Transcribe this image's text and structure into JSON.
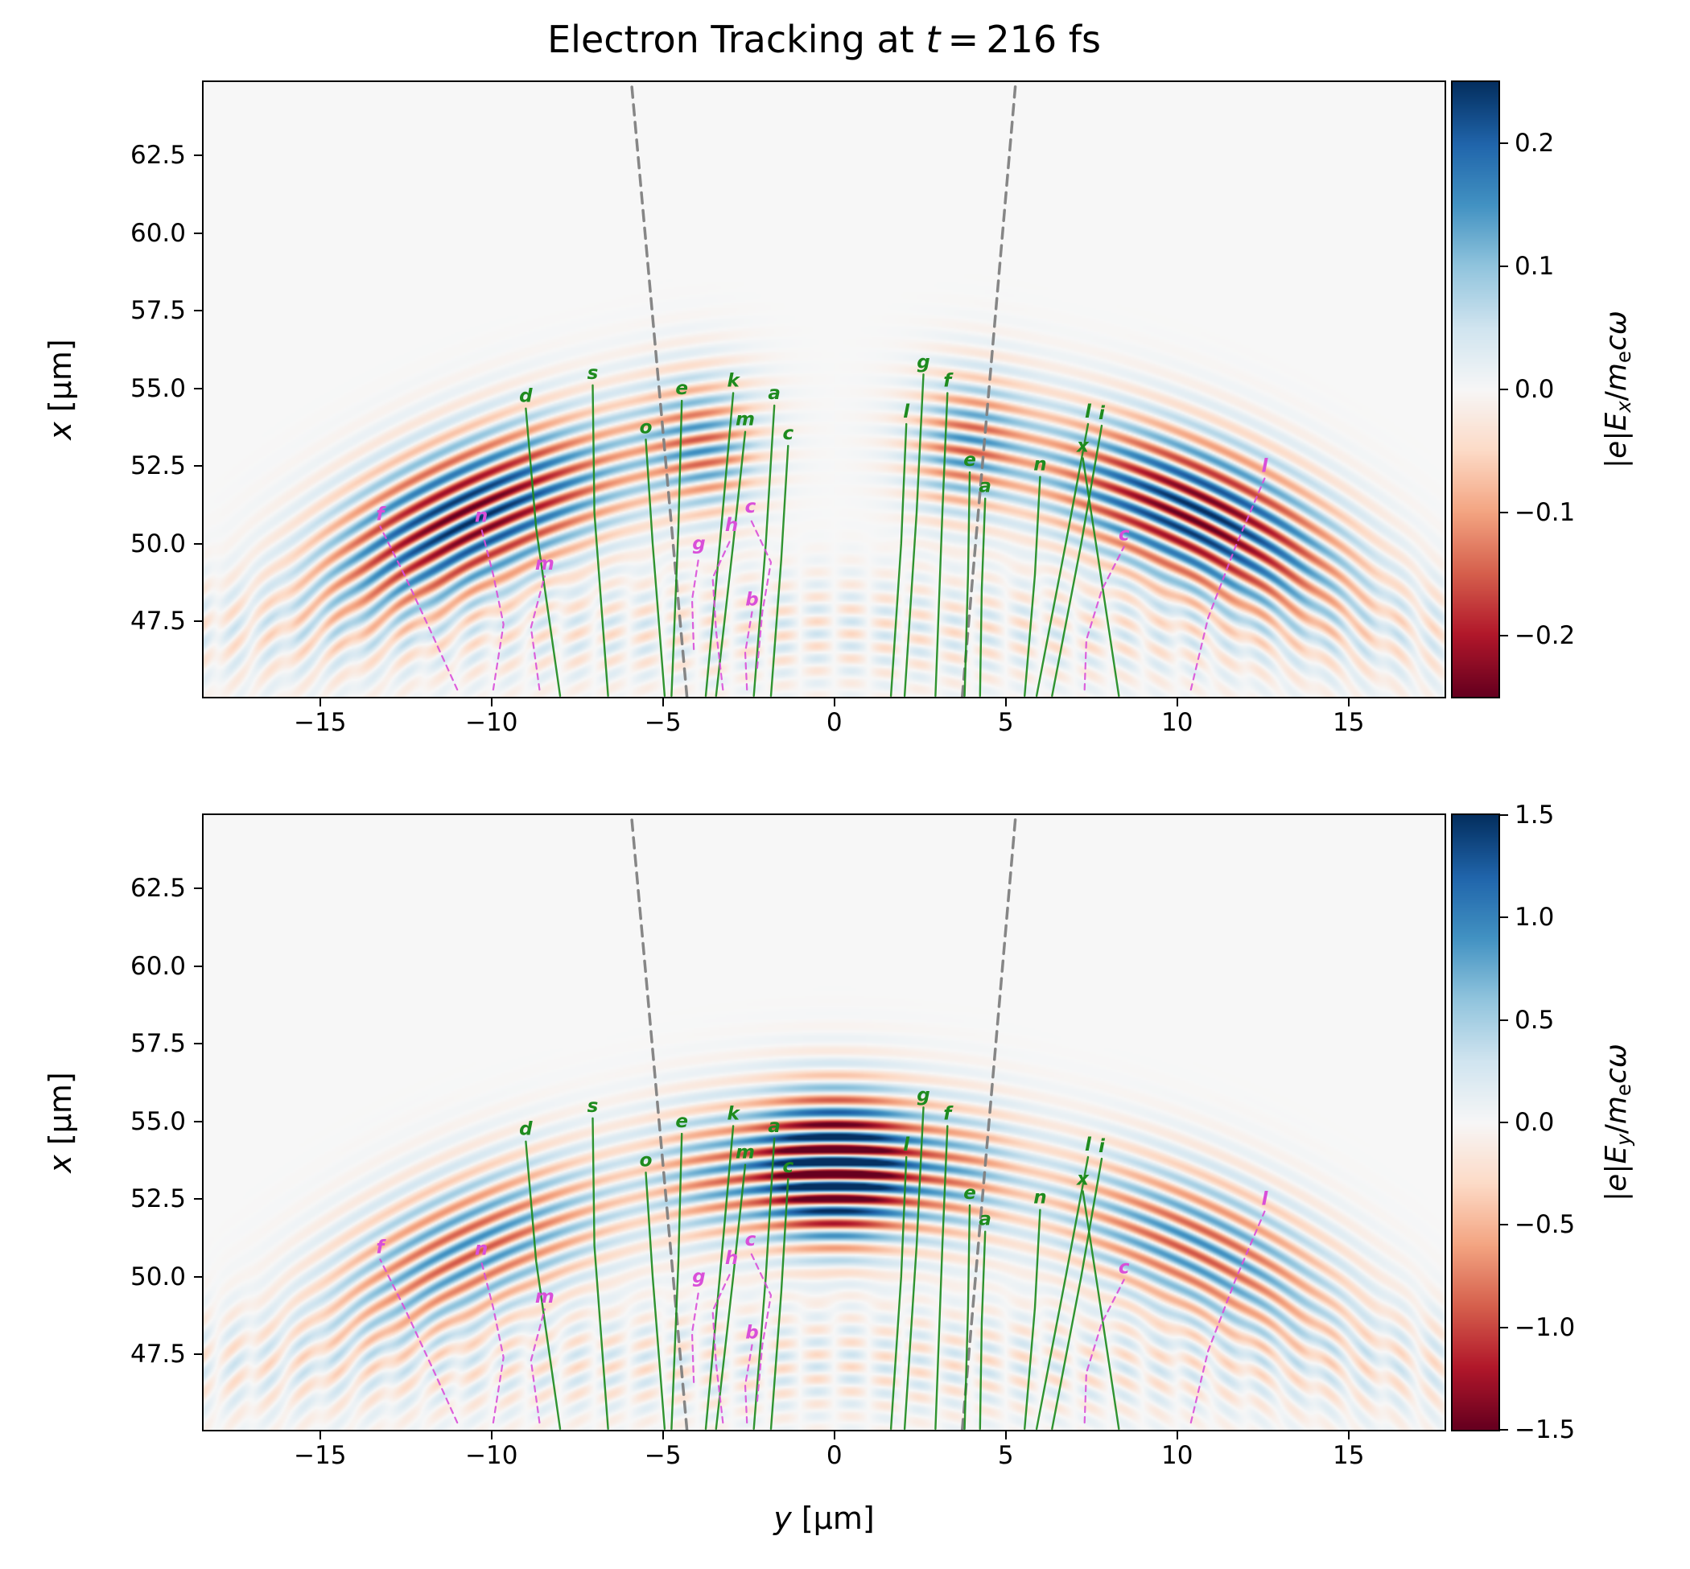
{
  "title": {
    "prefix": "Electron Tracking at ",
    "var": "t",
    "suffix": " = 216 fs"
  },
  "axes": {
    "ylabel": {
      "var": "x",
      "unit": " [μm]"
    },
    "xlabel": {
      "var": "y",
      "unit": " [μm]"
    },
    "x_ticks": [
      {
        "v": -15,
        "t": "−15"
      },
      {
        "v": -10,
        "t": "−10"
      },
      {
        "v": -5,
        "t": "−5"
      },
      {
        "v": 0,
        "t": "0"
      },
      {
        "v": 5,
        "t": "5"
      },
      {
        "v": 10,
        "t": "10"
      },
      {
        "v": 15,
        "t": "15"
      }
    ],
    "y_ticks": [
      {
        "v": 62.5,
        "t": "62.5"
      },
      {
        "v": 60.0,
        "t": "60.0"
      },
      {
        "v": 57.5,
        "t": "57.5"
      },
      {
        "v": 55.0,
        "t": "55.0"
      },
      {
        "v": 52.5,
        "t": "52.5"
      },
      {
        "v": 50.0,
        "t": "50.0"
      },
      {
        "v": 47.5,
        "t": "47.5"
      }
    ]
  },
  "colorbars": [
    {
      "ticks": [
        {
          "v": 0.2,
          "t": "0.2"
        },
        {
          "v": 0.1,
          "t": "0.1"
        },
        {
          "v": 0.0,
          "t": "0.0"
        },
        {
          "v": -0.1,
          "t": "−0.1"
        },
        {
          "v": -0.2,
          "t": "−0.2"
        }
      ],
      "label_parts": [
        {
          "t": "|"
        },
        {
          "t": "e",
          "i": 1
        },
        {
          "t": "|"
        },
        {
          "t": "E",
          "i": 1
        },
        {
          "t": "x",
          "i": 1,
          "s": 1
        },
        {
          "t": "/"
        },
        {
          "t": "m",
          "i": 1
        },
        {
          "t": "e",
          "s": 1
        },
        {
          "t": "c",
          "i": 1
        },
        {
          "t": "ω",
          "i": 1
        }
      ]
    },
    {
      "ticks": [
        {
          "v": 1.5,
          "t": "1.5"
        },
        {
          "v": 1.0,
          "t": "1.0"
        },
        {
          "v": 0.5,
          "t": "0.5"
        },
        {
          "v": 0.0,
          "t": "0.0"
        },
        {
          "v": -0.5,
          "t": "−0.5"
        },
        {
          "v": -1.0,
          "t": "−1.0"
        },
        {
          "v": -1.5,
          "t": "−1.5"
        }
      ],
      "label_parts": [
        {
          "t": "|"
        },
        {
          "t": "e",
          "i": 1
        },
        {
          "t": "|"
        },
        {
          "t": "E",
          "i": 1
        },
        {
          "t": "y",
          "i": 1,
          "s": 1
        },
        {
          "t": "/"
        },
        {
          "t": "m",
          "i": 1
        },
        {
          "t": "e",
          "s": 1
        },
        {
          "t": "c",
          "i": 1
        },
        {
          "t": "ω",
          "i": 1
        }
      ]
    }
  ],
  "chart_data": {
    "type": "heatmap",
    "title": "Electron Tracking at t = 216 fs",
    "time_fs": 216,
    "colormap": "RdBu",
    "x_axis": {
      "label": "y [μm]",
      "range": [
        -18.4,
        17.8
      ],
      "ticks": [
        -15,
        -10,
        -5,
        0,
        5,
        10,
        15
      ]
    },
    "y_axis": {
      "label": "x [μm]",
      "range": [
        45.07,
        64.86
      ],
      "ticks": [
        47.5,
        50.0,
        52.5,
        55.0,
        57.5,
        60.0,
        62.5
      ]
    },
    "panels": [
      {
        "field_label": "|e|E_x/m_e cω",
        "colorbar_range": [
          -0.25,
          0.25
        ],
        "colorbar_ticks": [
          -0.2,
          -0.1,
          0.0,
          0.1,
          0.2
        ],
        "model": {
          "odd": true,
          "back": 0.055,
          "lobes": [
            {
              "theta": 0.48,
              "sigma": 0.21,
              "amp": 0.26
            },
            {
              "theta": 0.165,
              "sigma": 0.07,
              "amp": 0.13
            }
          ]
        }
      },
      {
        "field_label": "|e|E_y/m_e cω",
        "colorbar_range": [
          -1.5,
          1.5
        ],
        "colorbar_ticks": [
          -1.5,
          -1.0,
          -0.5,
          0.0,
          0.5,
          1.0,
          1.5
        ],
        "model": {
          "odd": false,
          "back": 0.33,
          "lobes": [
            {
              "theta": 0.0,
              "sigma": 0.105,
              "amp": 2.3
            },
            {
              "theta": 0.48,
              "sigma": 0.21,
              "amp": 0.95
            },
            {
              "theta": 0.165,
              "sigma": 0.07,
              "amp": 0.5
            }
          ]
        }
      }
    ],
    "wave_model": {
      "wavelength_um": 0.8,
      "wavefront_center_x_um": 30.5,
      "wavefront_radius_um": 23.0,
      "radial_sigma_um": 2.3,
      "back_x": 47.2,
      "back_sx": 1.9,
      "back_ly": 2.0
    },
    "cone_lines": [
      {
        "points": [
          [
            -4.3,
            45.07
          ],
          [
            -5.92,
            64.86
          ]
        ]
      },
      {
        "points": [
          [
            3.73,
            45.07
          ],
          [
            5.29,
            64.86
          ]
        ]
      }
    ],
    "colors": {
      "tracked": "#1e8b1e",
      "lost": "#d94fd9",
      "cone": "#7f7f7f"
    },
    "trajectories": {
      "tracked": [
        {
          "label": "d",
          "pts": [
            [
              -8.0,
              45.1
            ],
            [
              -8.7,
              50.5
            ],
            [
              -9.0,
              54.35
            ]
          ]
        },
        {
          "label": "s",
          "pts": [
            [
              -6.6,
              45.1
            ],
            [
              -7.0,
              51.0
            ],
            [
              -7.05,
              55.1
            ]
          ]
        },
        {
          "label": "o",
          "pts": [
            [
              -4.95,
              45.1
            ],
            [
              -5.3,
              50.0
            ],
            [
              -5.5,
              53.35
            ]
          ]
        },
        {
          "label": "e",
          "pts": [
            [
              -4.75,
              45.1
            ],
            [
              -4.55,
              50.5
            ],
            [
              -4.45,
              54.6
            ]
          ]
        },
        {
          "label": "k",
          "pts": [
            [
              -3.75,
              45.1
            ],
            [
              -3.3,
              50.5
            ],
            [
              -2.95,
              54.85
            ]
          ]
        },
        {
          "label": "m",
          "pts": [
            [
              -3.45,
              45.1
            ],
            [
              -2.95,
              50.0
            ],
            [
              -2.6,
              53.6
            ]
          ]
        },
        {
          "label": "a",
          "pts": [
            [
              -2.35,
              45.1
            ],
            [
              -2.0,
              50.0
            ],
            [
              -1.75,
              54.45
            ]
          ]
        },
        {
          "label": "c",
          "pts": [
            [
              -1.85,
              45.1
            ],
            [
              -1.55,
              49.5
            ],
            [
              -1.35,
              53.15
            ]
          ]
        },
        {
          "label": "g",
          "pts": [
            [
              2.05,
              45.1
            ],
            [
              2.4,
              51.0
            ],
            [
              2.6,
              55.45
            ]
          ]
        },
        {
          "label": "f",
          "pts": [
            [
              2.95,
              45.1
            ],
            [
              3.15,
              51.0
            ],
            [
              3.3,
              54.85
            ]
          ]
        },
        {
          "label": "l",
          "pts": [
            [
              1.65,
              45.1
            ],
            [
              1.95,
              50.0
            ],
            [
              2.1,
              53.85
            ]
          ]
        },
        {
          "label": "a",
          "pts": [
            [
              4.25,
              45.1
            ],
            [
              4.3,
              48.5
            ],
            [
              4.4,
              51.45
            ]
          ]
        },
        {
          "label": "e",
          "pts": [
            [
              3.8,
              45.1
            ],
            [
              3.9,
              49.0
            ],
            [
              3.95,
              52.3
            ]
          ]
        },
        {
          "label": "l",
          "pts": [
            [
              5.9,
              45.1
            ],
            [
              6.75,
              50.0
            ],
            [
              7.4,
              53.85
            ]
          ]
        },
        {
          "label": "i",
          "pts": [
            [
              6.35,
              45.1
            ],
            [
              7.2,
              50.0
            ],
            [
              7.8,
              53.8
            ]
          ]
        },
        {
          "label": "x",
          "pts": [
            [
              8.3,
              45.1
            ],
            [
              7.7,
              49.5
            ],
            [
              7.25,
              52.75
            ]
          ]
        },
        {
          "label": "n",
          "pts": [
            [
              5.55,
              45.1
            ],
            [
              5.85,
              49.0
            ],
            [
              6.0,
              52.15
            ]
          ]
        }
      ],
      "lost": [
        {
          "label": "f",
          "pts": [
            [
              -11.0,
              45.3
            ],
            [
              -11.7,
              47.0
            ],
            [
              -12.5,
              48.9
            ],
            [
              -13.25,
              50.55
            ]
          ]
        },
        {
          "label": "n",
          "pts": [
            [
              -9.95,
              45.3
            ],
            [
              -9.65,
              47.4
            ],
            [
              -9.95,
              49.0
            ],
            [
              -10.3,
              50.5
            ]
          ]
        },
        {
          "label": "m",
          "pts": [
            [
              -8.6,
              45.3
            ],
            [
              -8.85,
              47.3
            ],
            [
              -8.45,
              48.95
            ]
          ]
        },
        {
          "label": "g",
          "pts": [
            [
              -4.1,
              46.6
            ],
            [
              -4.15,
              48.2
            ],
            [
              -3.95,
              49.6
            ]
          ]
        },
        {
          "label": "h",
          "pts": [
            [
              -3.25,
              45.3
            ],
            [
              -3.45,
              47.2
            ],
            [
              -3.55,
              48.9
            ],
            [
              -3.0,
              50.2
            ]
          ]
        },
        {
          "label": "c",
          "pts": [
            [
              -2.25,
              46.0
            ],
            [
              -2.1,
              47.8
            ],
            [
              -1.85,
              49.4
            ],
            [
              -2.45,
              50.8
            ]
          ]
        },
        {
          "label": "b",
          "pts": [
            [
              -2.55,
              45.3
            ],
            [
              -2.6,
              46.5
            ],
            [
              -2.4,
              47.8
            ]
          ]
        },
        {
          "label": "c",
          "pts": [
            [
              7.3,
              45.3
            ],
            [
              7.35,
              46.9
            ],
            [
              7.8,
              48.5
            ],
            [
              8.45,
              49.9
            ]
          ]
        },
        {
          "label": "l",
          "pts": [
            [
              10.4,
              45.3
            ],
            [
              10.9,
              47.6
            ],
            [
              11.7,
              49.9
            ],
            [
              12.55,
              52.1
            ]
          ]
        }
      ]
    }
  }
}
